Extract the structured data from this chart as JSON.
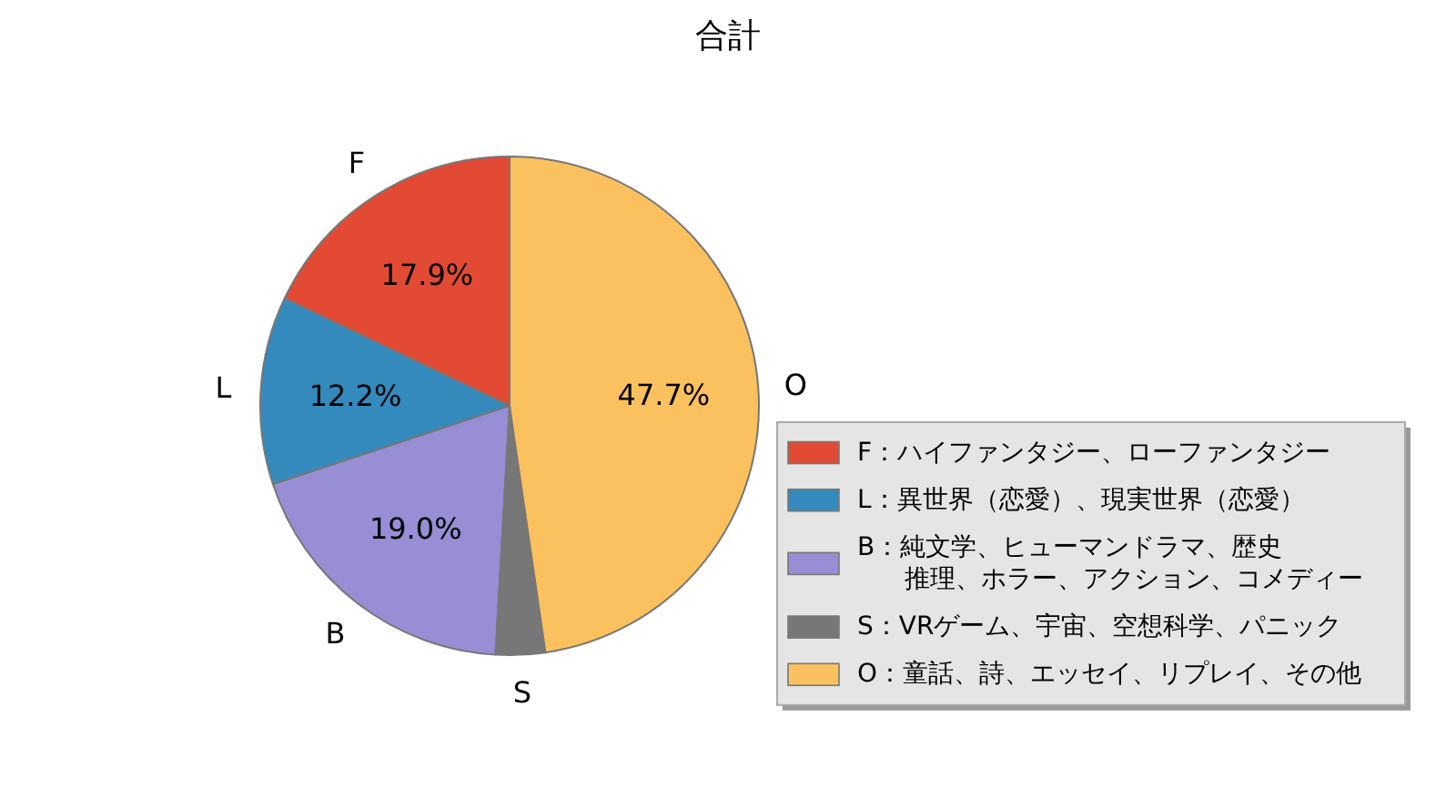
{
  "chart_data": {
    "type": "pie",
    "title": "合計",
    "categories": [
      "F",
      "L",
      "B",
      "S",
      "O"
    ],
    "values": [
      17.9,
      12.2,
      19.0,
      3.2,
      47.7
    ],
    "value_labels": [
      "17.9%",
      "12.2%",
      "19.0%",
      null,
      "47.7%"
    ],
    "colors": [
      "#e24a33",
      "#348abd",
      "#988ed5",
      "#777777",
      "#fbc15e"
    ],
    "annotations": [
      "F：ハイファンタジー、ローファンタジー",
      "L：異世界（恋愛）、現実世界（恋愛）",
      "B：純文学、ヒューマンドラマ、歴史推理、ホラー、アクション、コメディー",
      "S：VRゲーム、宇宙、空想科学、パニック",
      "O：童話、詩、エッセイ、リプレイ、その他"
    ]
  }
}
